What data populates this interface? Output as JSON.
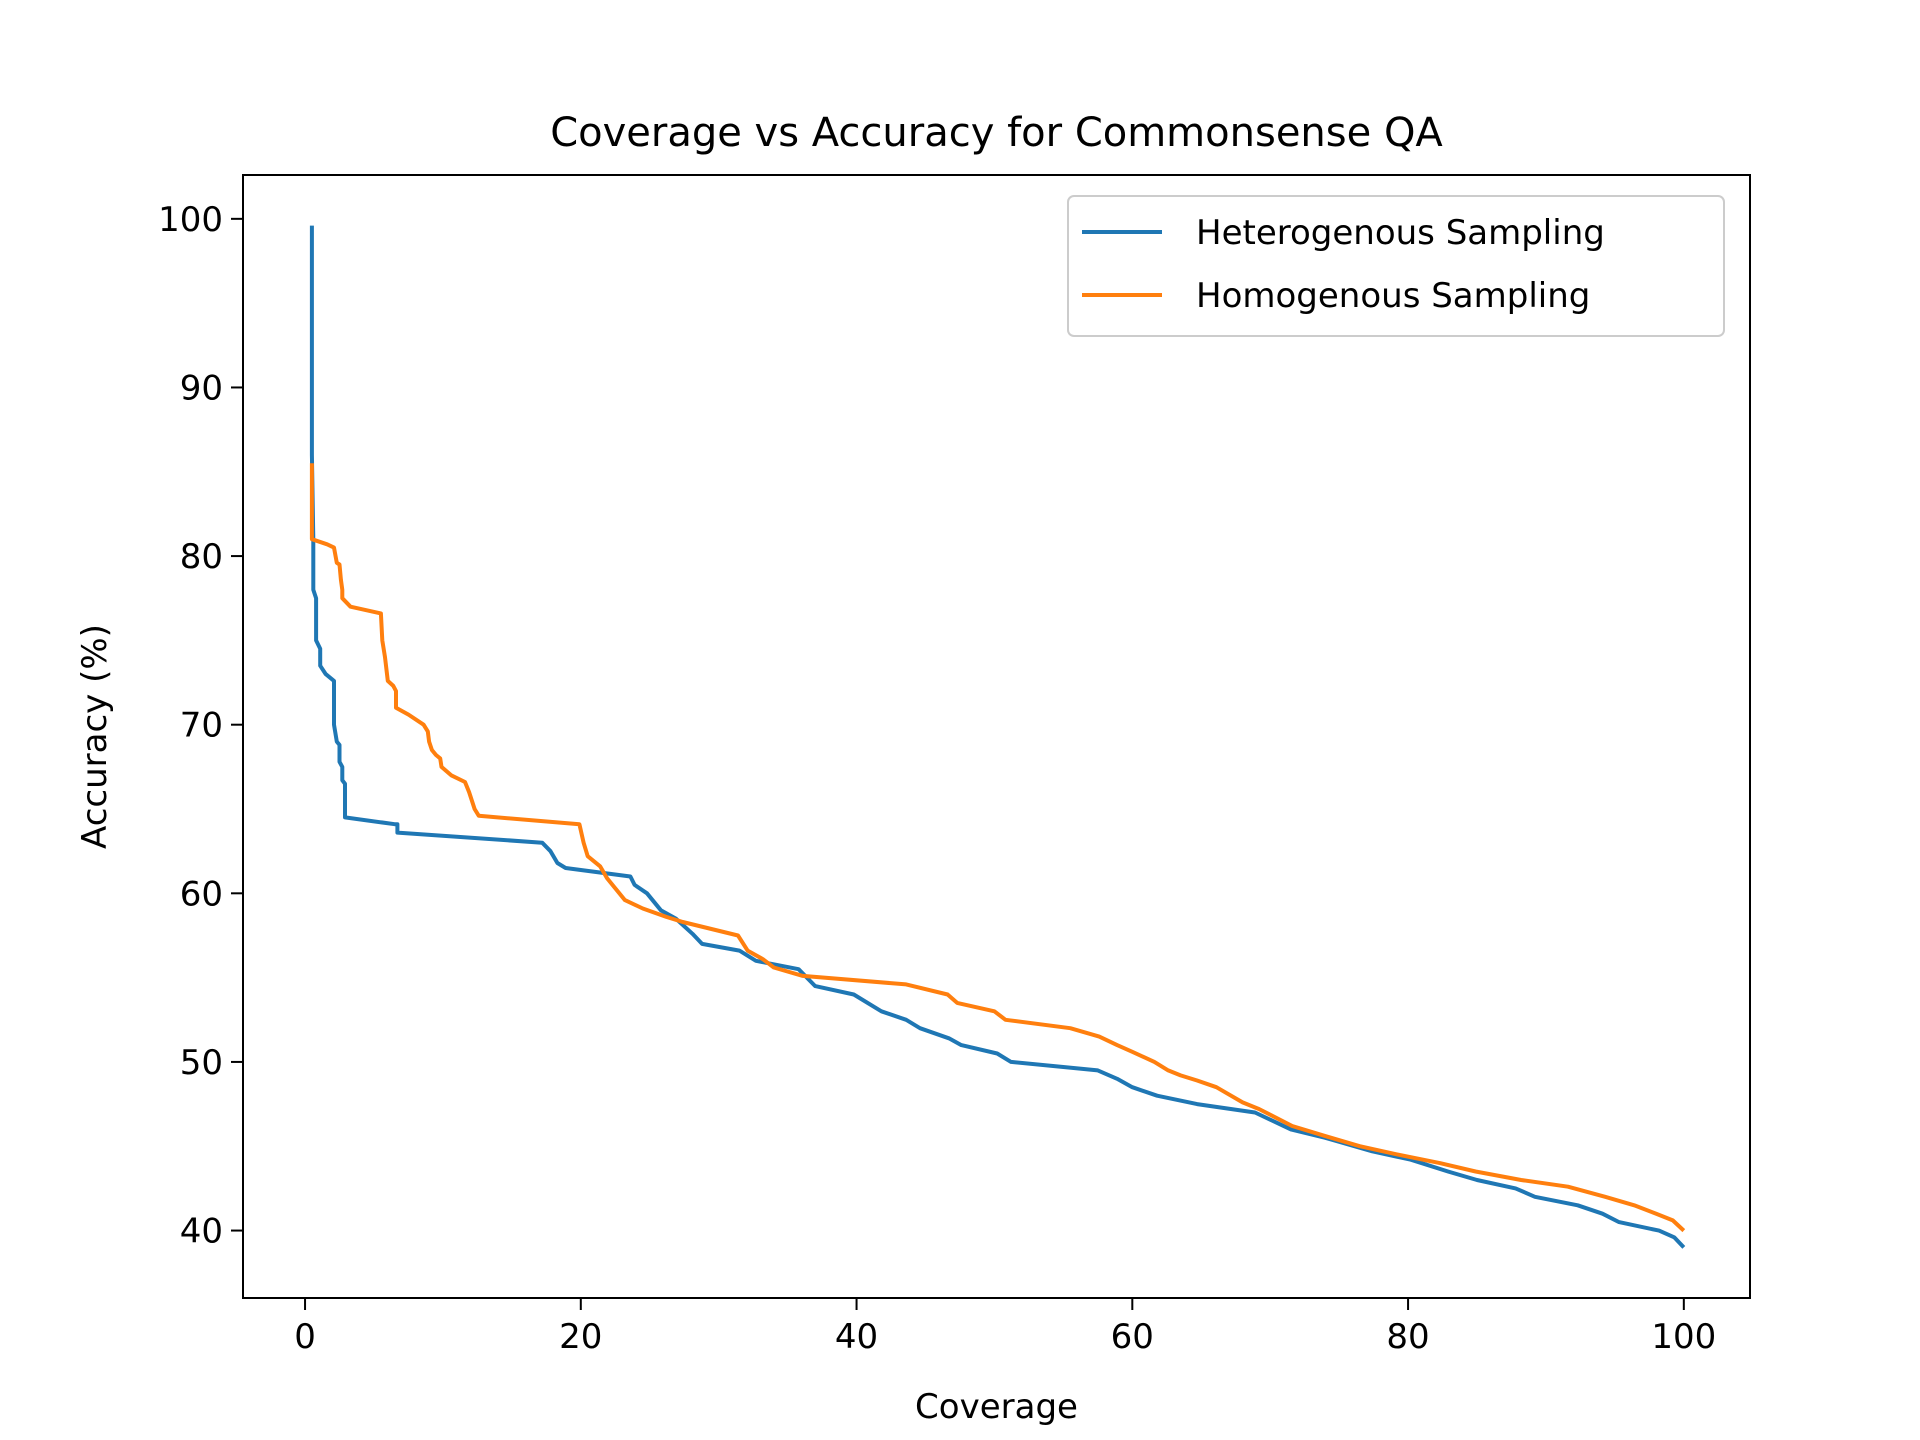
{
  "chart_data": {
    "type": "line",
    "title": "Coverage vs Accuracy for Commonsense QA",
    "xlabel": "Coverage",
    "ylabel": "Accuracy (%)",
    "xlim": [
      -4.5,
      104.8
    ],
    "ylim": [
      36.0,
      102.6
    ],
    "xticks": [
      0,
      20,
      40,
      60,
      80,
      100
    ],
    "yticks": [
      40,
      50,
      60,
      70,
      80,
      90,
      100
    ],
    "grid": false,
    "legend_position": "top-right",
    "series": [
      {
        "name": "Heterogenous Sampling",
        "color": "#1f77b4",
        "points": [
          [
            0.5,
            99.6
          ],
          [
            0.5,
            86.0
          ],
          [
            0.6,
            81.0
          ],
          [
            0.6,
            78.0
          ],
          [
            0.8,
            77.5
          ],
          [
            0.8,
            75.0
          ],
          [
            1.1,
            74.5
          ],
          [
            1.1,
            73.5
          ],
          [
            1.5,
            73.0
          ],
          [
            2.1,
            72.6
          ],
          [
            2.1,
            70.0
          ],
          [
            2.3,
            69.0
          ],
          [
            2.5,
            68.8
          ],
          [
            2.5,
            67.8
          ],
          [
            2.7,
            67.5
          ],
          [
            2.7,
            66.7
          ],
          [
            2.9,
            66.5
          ],
          [
            2.9,
            64.5
          ],
          [
            6.5,
            64.1
          ],
          [
            6.7,
            64.1
          ],
          [
            6.7,
            63.6
          ],
          [
            17.2,
            63.0
          ],
          [
            17.8,
            62.5
          ],
          [
            18.3,
            61.8
          ],
          [
            18.9,
            61.5
          ],
          [
            23.6,
            61.0
          ],
          [
            23.9,
            60.5
          ],
          [
            24.8,
            60.0
          ],
          [
            25.8,
            59.0
          ],
          [
            26.9,
            58.5
          ],
          [
            28.1,
            57.6
          ],
          [
            28.8,
            57.0
          ],
          [
            31.5,
            56.6
          ],
          [
            32.7,
            56.0
          ],
          [
            35.8,
            55.5
          ],
          [
            37.0,
            54.5
          ],
          [
            39.8,
            54.0
          ],
          [
            41.8,
            53.0
          ],
          [
            43.6,
            52.5
          ],
          [
            44.6,
            52.0
          ],
          [
            46.7,
            51.4
          ],
          [
            47.6,
            51.0
          ],
          [
            50.2,
            50.5
          ],
          [
            51.2,
            50.0
          ],
          [
            57.5,
            49.5
          ],
          [
            58.9,
            49.0
          ],
          [
            60.0,
            48.5
          ],
          [
            61.8,
            48.0
          ],
          [
            64.7,
            47.5
          ],
          [
            68.9,
            47.0
          ],
          [
            71.5,
            46.0
          ],
          [
            74.0,
            45.5
          ],
          [
            77.4,
            44.7
          ],
          [
            80.2,
            44.2
          ],
          [
            82.9,
            43.5
          ],
          [
            85.0,
            43.0
          ],
          [
            87.8,
            42.5
          ],
          [
            89.2,
            42.0
          ],
          [
            92.3,
            41.5
          ],
          [
            94.1,
            41.0
          ],
          [
            95.3,
            40.5
          ],
          [
            98.2,
            40.0
          ],
          [
            99.3,
            39.6
          ],
          [
            100.0,
            39.0
          ]
        ]
      },
      {
        "name": "Homogenous Sampling",
        "color": "#ff7f0e",
        "points": [
          [
            0.5,
            85.5
          ],
          [
            0.5,
            81.0
          ],
          [
            1.6,
            80.7
          ],
          [
            2.1,
            80.5
          ],
          [
            2.3,
            79.6
          ],
          [
            2.5,
            79.5
          ],
          [
            2.6,
            78.6
          ],
          [
            2.7,
            78.0
          ],
          [
            2.7,
            77.5
          ],
          [
            3.3,
            77.0
          ],
          [
            5.5,
            76.6
          ],
          [
            5.6,
            75.0
          ],
          [
            5.8,
            74.0
          ],
          [
            6.0,
            72.6
          ],
          [
            6.4,
            72.3
          ],
          [
            6.6,
            72.0
          ],
          [
            6.6,
            71.0
          ],
          [
            7.5,
            70.6
          ],
          [
            8.6,
            70.0
          ],
          [
            8.9,
            69.6
          ],
          [
            9.0,
            69.0
          ],
          [
            9.2,
            68.5
          ],
          [
            9.5,
            68.2
          ],
          [
            9.8,
            68.0
          ],
          [
            9.9,
            67.5
          ],
          [
            10.6,
            67.0
          ],
          [
            11.6,
            66.6
          ],
          [
            11.9,
            66.0
          ],
          [
            12.3,
            65.0
          ],
          [
            12.6,
            64.6
          ],
          [
            19.9,
            64.1
          ],
          [
            20.2,
            63.0
          ],
          [
            20.5,
            62.2
          ],
          [
            21.4,
            61.6
          ],
          [
            21.9,
            60.9
          ],
          [
            22.4,
            60.4
          ],
          [
            23.2,
            59.6
          ],
          [
            24.5,
            59.1
          ],
          [
            26.2,
            58.6
          ],
          [
            27.4,
            58.3
          ],
          [
            31.4,
            57.5
          ],
          [
            32.1,
            56.6
          ],
          [
            33.2,
            56.1
          ],
          [
            34.0,
            55.6
          ],
          [
            36.1,
            55.1
          ],
          [
            43.6,
            54.6
          ],
          [
            46.6,
            54.0
          ],
          [
            47.3,
            53.5
          ],
          [
            50.0,
            53.0
          ],
          [
            50.8,
            52.5
          ],
          [
            55.5,
            52.0
          ],
          [
            57.6,
            51.5
          ],
          [
            58.9,
            51.0
          ],
          [
            60.0,
            50.6
          ],
          [
            61.6,
            50.0
          ],
          [
            62.6,
            49.5
          ],
          [
            63.5,
            49.2
          ],
          [
            64.7,
            48.9
          ],
          [
            66.1,
            48.5
          ],
          [
            68.0,
            47.6
          ],
          [
            69.2,
            47.2
          ],
          [
            71.6,
            46.2
          ],
          [
            74.0,
            45.6
          ],
          [
            76.5,
            45.0
          ],
          [
            79.3,
            44.5
          ],
          [
            82.3,
            44.0
          ],
          [
            84.9,
            43.5
          ],
          [
            88.2,
            43.0
          ],
          [
            91.6,
            42.6
          ],
          [
            94.3,
            42.0
          ],
          [
            96.4,
            41.5
          ],
          [
            98.0,
            41.0
          ],
          [
            99.2,
            40.6
          ],
          [
            100.0,
            40.0
          ]
        ]
      }
    ]
  }
}
